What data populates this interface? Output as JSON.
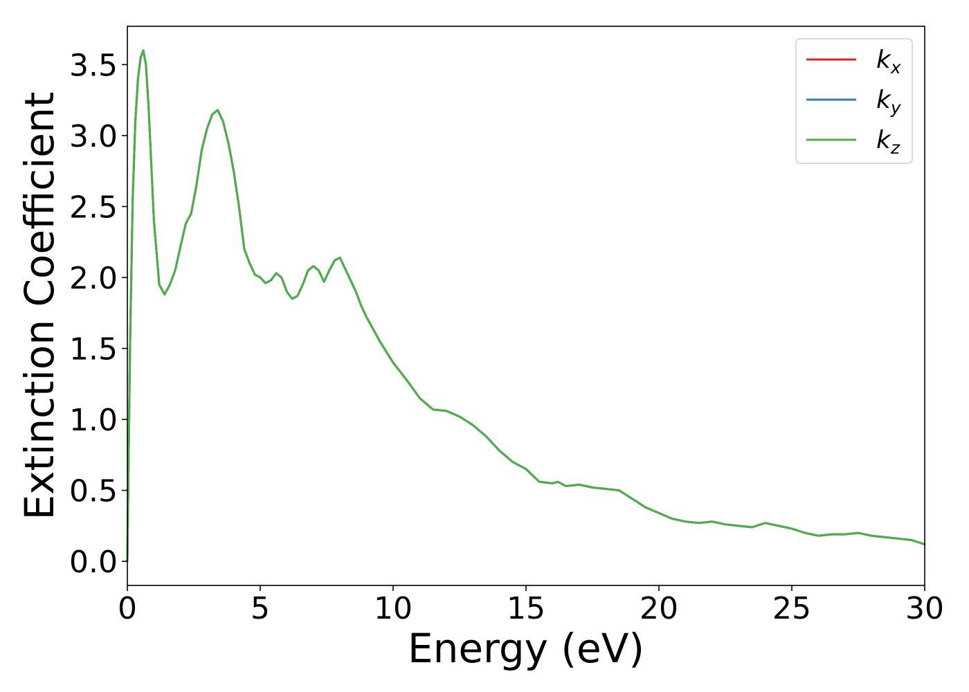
{
  "chart_data": {
    "type": "line",
    "title": "",
    "xlabel": "Energy (eV)",
    "ylabel": "Extinction Coefficient",
    "xlim": [
      0,
      30
    ],
    "ylim": [
      -0.17,
      3.77
    ],
    "xticks": [
      0,
      5,
      10,
      15,
      20,
      25,
      30
    ],
    "xtick_labels": [
      "0",
      "5",
      "10",
      "15",
      "20",
      "25",
      "30"
    ],
    "yticks": [
      0.0,
      0.5,
      1.0,
      1.5,
      2.0,
      2.5,
      3.0,
      3.5
    ],
    "ytick_labels": [
      "0.0",
      "0.5",
      "1.0",
      "1.5",
      "2.0",
      "2.5",
      "3.0",
      "3.5"
    ],
    "grid": false,
    "legend_position": "top-right",
    "series": [
      {
        "name": "k",
        "subscript": "x",
        "color": "#d62728",
        "x": [
          0,
          0.1,
          0.2,
          0.3,
          0.4,
          0.5,
          0.6,
          0.7,
          0.8,
          1.0,
          1.2,
          1.4,
          1.6,
          1.8,
          2.0,
          2.2,
          2.4,
          2.6,
          2.8,
          3.0,
          3.2,
          3.4,
          3.6,
          3.8,
          4.0,
          4.2,
          4.4,
          4.6,
          4.8,
          5.0,
          5.2,
          5.4,
          5.6,
          5.8,
          6.0,
          6.2,
          6.4,
          6.6,
          6.8,
          7.0,
          7.2,
          7.4,
          7.6,
          7.8,
          8.0,
          8.2,
          8.4,
          8.6,
          8.8,
          9.0,
          9.5,
          10.0,
          10.5,
          11.0,
          11.5,
          12.0,
          12.5,
          13.0,
          13.5,
          14.0,
          14.5,
          15.0,
          15.5,
          16.0,
          16.2,
          16.5,
          17.0,
          17.5,
          18.0,
          18.5,
          19.0,
          19.5,
          20.0,
          20.5,
          21.0,
          21.5,
          22.0,
          22.5,
          23.0,
          23.5,
          24.0,
          24.5,
          25.0,
          25.5,
          26.0,
          26.5,
          27.0,
          27.5,
          28.0,
          28.5,
          29.0,
          29.5,
          30.0
        ],
        "values": [
          0.0,
          1.5,
          2.55,
          3.1,
          3.4,
          3.55,
          3.6,
          3.5,
          3.2,
          2.4,
          1.95,
          1.88,
          1.95,
          2.05,
          2.22,
          2.38,
          2.45,
          2.65,
          2.9,
          3.05,
          3.15,
          3.18,
          3.1,
          2.95,
          2.75,
          2.5,
          2.2,
          2.1,
          2.02,
          2.0,
          1.96,
          1.98,
          2.03,
          2.0,
          1.9,
          1.85,
          1.87,
          1.95,
          2.05,
          2.08,
          2.05,
          1.97,
          2.05,
          2.12,
          2.14,
          2.06,
          1.98,
          1.9,
          1.8,
          1.72,
          1.55,
          1.4,
          1.28,
          1.15,
          1.07,
          1.06,
          1.02,
          0.96,
          0.88,
          0.78,
          0.7,
          0.65,
          0.56,
          0.55,
          0.56,
          0.53,
          0.54,
          0.52,
          0.51,
          0.5,
          0.44,
          0.38,
          0.34,
          0.3,
          0.28,
          0.27,
          0.28,
          0.26,
          0.25,
          0.24,
          0.27,
          0.25,
          0.23,
          0.2,
          0.18,
          0.19,
          0.19,
          0.2,
          0.18,
          0.17,
          0.16,
          0.15,
          0.12
        ]
      },
      {
        "name": "k",
        "subscript": "y",
        "color": "#377eb8",
        "x": [
          0,
          0.1,
          0.2,
          0.3,
          0.4,
          0.5,
          0.6,
          0.7,
          0.8,
          1.0,
          1.2,
          1.4,
          1.6,
          1.8,
          2.0,
          2.2,
          2.4,
          2.6,
          2.8,
          3.0,
          3.2,
          3.4,
          3.6,
          3.8,
          4.0,
          4.2,
          4.4,
          4.6,
          4.8,
          5.0,
          5.2,
          5.4,
          5.6,
          5.8,
          6.0,
          6.2,
          6.4,
          6.6,
          6.8,
          7.0,
          7.2,
          7.4,
          7.6,
          7.8,
          8.0,
          8.2,
          8.4,
          8.6,
          8.8,
          9.0,
          9.5,
          10.0,
          10.5,
          11.0,
          11.5,
          12.0,
          12.5,
          13.0,
          13.5,
          14.0,
          14.5,
          15.0,
          15.5,
          16.0,
          16.2,
          16.5,
          17.0,
          17.5,
          18.0,
          18.5,
          19.0,
          19.5,
          20.0,
          20.5,
          21.0,
          21.5,
          22.0,
          22.5,
          23.0,
          23.5,
          24.0,
          24.5,
          25.0,
          25.5,
          26.0,
          26.5,
          27.0,
          27.5,
          28.0,
          28.5,
          29.0,
          29.5,
          30.0
        ],
        "values": [
          0.0,
          1.5,
          2.55,
          3.1,
          3.4,
          3.55,
          3.6,
          3.5,
          3.2,
          2.4,
          1.95,
          1.88,
          1.95,
          2.05,
          2.22,
          2.38,
          2.45,
          2.65,
          2.9,
          3.05,
          3.15,
          3.18,
          3.1,
          2.95,
          2.75,
          2.5,
          2.2,
          2.1,
          2.02,
          2.0,
          1.96,
          1.98,
          2.03,
          2.0,
          1.9,
          1.85,
          1.87,
          1.95,
          2.05,
          2.08,
          2.05,
          1.97,
          2.05,
          2.12,
          2.14,
          2.06,
          1.98,
          1.9,
          1.8,
          1.72,
          1.55,
          1.4,
          1.28,
          1.15,
          1.07,
          1.06,
          1.02,
          0.96,
          0.88,
          0.78,
          0.7,
          0.65,
          0.56,
          0.55,
          0.56,
          0.53,
          0.54,
          0.52,
          0.51,
          0.5,
          0.44,
          0.38,
          0.34,
          0.3,
          0.28,
          0.27,
          0.28,
          0.26,
          0.25,
          0.24,
          0.27,
          0.25,
          0.23,
          0.2,
          0.18,
          0.19,
          0.19,
          0.2,
          0.18,
          0.17,
          0.16,
          0.15,
          0.12
        ]
      },
      {
        "name": "k",
        "subscript": "z",
        "color": "#4daf4a",
        "x": [
          0,
          0.1,
          0.2,
          0.3,
          0.4,
          0.5,
          0.6,
          0.7,
          0.8,
          1.0,
          1.2,
          1.4,
          1.6,
          1.8,
          2.0,
          2.2,
          2.4,
          2.6,
          2.8,
          3.0,
          3.2,
          3.4,
          3.6,
          3.8,
          4.0,
          4.2,
          4.4,
          4.6,
          4.8,
          5.0,
          5.2,
          5.4,
          5.6,
          5.8,
          6.0,
          6.2,
          6.4,
          6.6,
          6.8,
          7.0,
          7.2,
          7.4,
          7.6,
          7.8,
          8.0,
          8.2,
          8.4,
          8.6,
          8.8,
          9.0,
          9.5,
          10.0,
          10.5,
          11.0,
          11.5,
          12.0,
          12.5,
          13.0,
          13.5,
          14.0,
          14.5,
          15.0,
          15.5,
          16.0,
          16.2,
          16.5,
          17.0,
          17.5,
          18.0,
          18.5,
          19.0,
          19.5,
          20.0,
          20.5,
          21.0,
          21.5,
          22.0,
          22.5,
          23.0,
          23.5,
          24.0,
          24.5,
          25.0,
          25.5,
          26.0,
          26.5,
          27.0,
          27.5,
          28.0,
          28.5,
          29.0,
          29.5,
          30.0
        ],
        "values": [
          0.0,
          1.5,
          2.55,
          3.1,
          3.4,
          3.55,
          3.6,
          3.5,
          3.2,
          2.4,
          1.95,
          1.88,
          1.95,
          2.05,
          2.22,
          2.38,
          2.45,
          2.65,
          2.9,
          3.05,
          3.15,
          3.18,
          3.1,
          2.95,
          2.75,
          2.5,
          2.2,
          2.1,
          2.02,
          2.0,
          1.96,
          1.98,
          2.03,
          2.0,
          1.9,
          1.85,
          1.87,
          1.95,
          2.05,
          2.08,
          2.05,
          1.97,
          2.05,
          2.12,
          2.14,
          2.06,
          1.98,
          1.9,
          1.8,
          1.72,
          1.55,
          1.4,
          1.28,
          1.15,
          1.07,
          1.06,
          1.02,
          0.96,
          0.88,
          0.78,
          0.7,
          0.65,
          0.56,
          0.55,
          0.56,
          0.53,
          0.54,
          0.52,
          0.51,
          0.5,
          0.44,
          0.38,
          0.34,
          0.3,
          0.28,
          0.27,
          0.28,
          0.26,
          0.25,
          0.24,
          0.27,
          0.25,
          0.23,
          0.2,
          0.18,
          0.19,
          0.19,
          0.2,
          0.18,
          0.17,
          0.16,
          0.15,
          0.12
        ]
      }
    ]
  }
}
